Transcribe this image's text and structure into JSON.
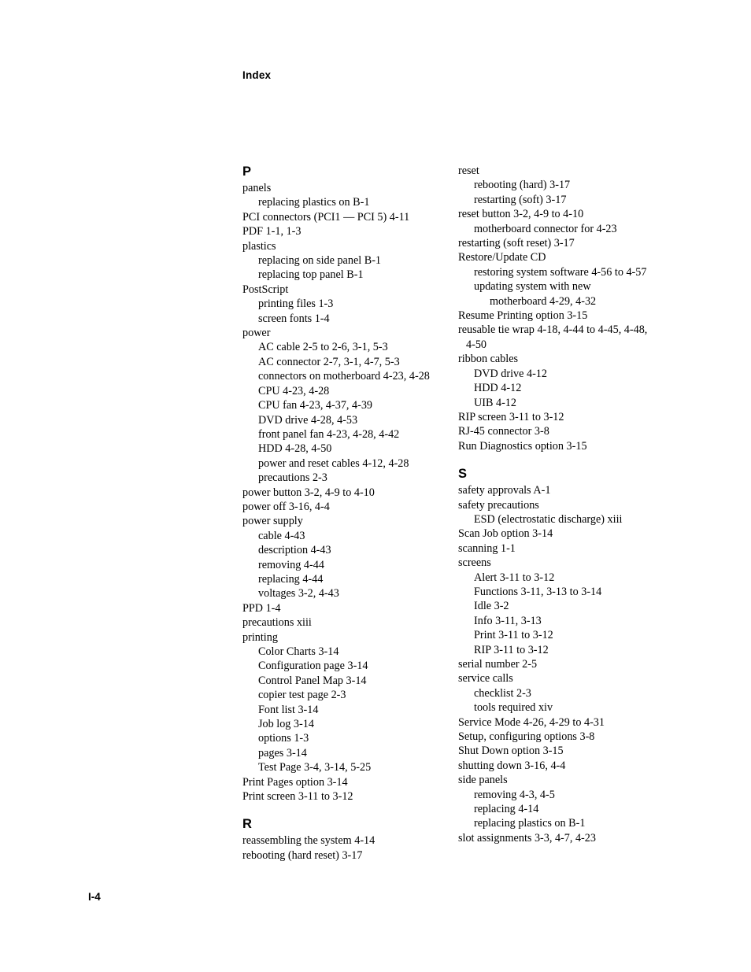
{
  "header": "Index",
  "pageNumber": "I-4",
  "typography": {
    "body_font": "Garamond",
    "body_pt": 14.2,
    "body_line_height": 18.4,
    "heading_font": "Helvetica",
    "heading_pt": 16.5,
    "running_head_pt": 13.5,
    "text_color": "#000000",
    "bg_color": "#ffffff"
  },
  "leftColumn": {
    "sections": [
      {
        "letter": "P",
        "entries": [
          {
            "text": "panels",
            "level": 0
          },
          {
            "text": "replacing plastics on  B-1",
            "level": 1
          },
          {
            "text": "PCI connectors (PCI1 — PCI 5)  4-11",
            "level": 0
          },
          {
            "text": "PDF  1-1, 1-3",
            "level": 0
          },
          {
            "text": "plastics",
            "level": 0
          },
          {
            "text": "replacing on side panel  B-1",
            "level": 1
          },
          {
            "text": "replacing top panel  B-1",
            "level": 1
          },
          {
            "text": "PostScript",
            "level": 0
          },
          {
            "text": "printing files  1-3",
            "level": 1
          },
          {
            "text": "screen fonts  1-4",
            "level": 1
          },
          {
            "text": "power",
            "level": 0
          },
          {
            "text": "AC cable  2-5 to 2-6, 3-1, 5-3",
            "level": 1
          },
          {
            "text": "AC connector  2-7, 3-1, 4-7, 5-3",
            "level": 1
          },
          {
            "text": "connectors on motherboard  4-23, 4-28",
            "level": 1
          },
          {
            "text": "CPU  4-23, 4-28",
            "level": 1
          },
          {
            "text": "CPU fan  4-23, 4-37, 4-39",
            "level": 1
          },
          {
            "text": "DVD drive  4-28, 4-53",
            "level": 1
          },
          {
            "text": "front panel fan  4-23, 4-28, 4-42",
            "level": 1
          },
          {
            "text": "HDD  4-28, 4-50",
            "level": 1
          },
          {
            "text": "power and reset cables  4-12, 4-28",
            "level": 1
          },
          {
            "text": "precautions  2-3",
            "level": 1
          },
          {
            "text": "power button  3-2, 4-9 to 4-10",
            "level": 0
          },
          {
            "text": "power off  3-16, 4-4",
            "level": 0
          },
          {
            "text": "power supply",
            "level": 0
          },
          {
            "text": "cable  4-43",
            "level": 1
          },
          {
            "text": "description  4-43",
            "level": 1
          },
          {
            "text": "removing  4-44",
            "level": 1
          },
          {
            "text": "replacing  4-44",
            "level": 1
          },
          {
            "text": "voltages  3-2, 4-43",
            "level": 1
          },
          {
            "text": "PPD  1-4",
            "level": 0
          },
          {
            "text": "precautions  xiii",
            "level": 0
          },
          {
            "text": "printing",
            "level": 0
          },
          {
            "text": "Color Charts  3-14",
            "level": 1
          },
          {
            "text": "Configuration page  3-14",
            "level": 1
          },
          {
            "text": "Control Panel Map  3-14",
            "level": 1
          },
          {
            "text": "copier test page  2-3",
            "level": 1
          },
          {
            "text": "Font list  3-14",
            "level": 1
          },
          {
            "text": "Job log  3-14",
            "level": 1
          },
          {
            "text": "options  1-3",
            "level": 1
          },
          {
            "text": "pages  3-14",
            "level": 1
          },
          {
            "text": "Test Page  3-4, 3-14, 5-25",
            "level": 1
          },
          {
            "text": "Print Pages option  3-14",
            "level": 0
          },
          {
            "text": "Print screen  3-11 to 3-12",
            "level": 0
          }
        ]
      },
      {
        "letter": "R",
        "entries": [
          {
            "text": "reassembling the system  4-14",
            "level": 0
          },
          {
            "text": "rebooting (hard reset)  3-17",
            "level": 0
          }
        ]
      }
    ]
  },
  "rightColumn": {
    "sections": [
      {
        "letter": null,
        "entries": [
          {
            "text": "reset",
            "level": 0
          },
          {
            "text": "rebooting (hard)  3-17",
            "level": 1
          },
          {
            "text": "restarting (soft)  3-17",
            "level": 1
          },
          {
            "text": "reset button  3-2, 4-9 to 4-10",
            "level": 0
          },
          {
            "text": "motherboard connector for  4-23",
            "level": 1
          },
          {
            "text": "restarting (soft reset)  3-17",
            "level": 0
          },
          {
            "text": "Restore/Update CD",
            "level": 0
          },
          {
            "text": "restoring system software  4-56 to 4-57",
            "level": 1
          },
          {
            "text": "updating system with new",
            "level": 1
          },
          {
            "text": "motherboard  4-29, 4-32",
            "level": 2
          },
          {
            "text": "Resume Printing option  3-15",
            "level": 0
          },
          {
            "text": "reusable tie wrap  4-18, 4-44 to 4-45, 4-48,",
            "level": 0
          },
          {
            "text": "4-50",
            "level": 0,
            "continuation": true
          },
          {
            "text": "ribbon cables",
            "level": 0
          },
          {
            "text": "DVD drive  4-12",
            "level": 1
          },
          {
            "text": "HDD  4-12",
            "level": 1
          },
          {
            "text": "UIB  4-12",
            "level": 1
          },
          {
            "text": "RIP screen  3-11 to 3-12",
            "level": 0
          },
          {
            "text": "RJ-45 connector  3-8",
            "level": 0
          },
          {
            "text": "Run Diagnostics option  3-15",
            "level": 0
          }
        ]
      },
      {
        "letter": "S",
        "entries": [
          {
            "text": "safety approvals  A-1",
            "level": 0
          },
          {
            "text": "safety precautions",
            "level": 0
          },
          {
            "text": "ESD (electrostatic discharge)  xiii",
            "level": 1
          },
          {
            "text": "Scan Job option  3-14",
            "level": 0
          },
          {
            "text": "scanning  1-1",
            "level": 0
          },
          {
            "text": "screens",
            "level": 0
          },
          {
            "text": "Alert  3-11 to 3-12",
            "level": 1
          },
          {
            "text": "Functions  3-11, 3-13 to 3-14",
            "level": 1
          },
          {
            "text": "Idle  3-2",
            "level": 1
          },
          {
            "text": "Info  3-11, 3-13",
            "level": 1
          },
          {
            "text": "Print  3-11 to 3-12",
            "level": 1
          },
          {
            "text": "RIP  3-11 to 3-12",
            "level": 1
          },
          {
            "text": "serial number  2-5",
            "level": 0
          },
          {
            "text": "service calls",
            "level": 0
          },
          {
            "text": "checklist  2-3",
            "level": 1
          },
          {
            "text": "tools required  xiv",
            "level": 1
          },
          {
            "text": "Service Mode  4-26, 4-29 to 4-31",
            "level": 0
          },
          {
            "text": "Setup, configuring options  3-8",
            "level": 0
          },
          {
            "text": "Shut Down option  3-15",
            "level": 0
          },
          {
            "text": "shutting down  3-16, 4-4",
            "level": 0
          },
          {
            "text": "side panels",
            "level": 0
          },
          {
            "text": "removing  4-3, 4-5",
            "level": 1
          },
          {
            "text": "replacing  4-14",
            "level": 1
          },
          {
            "text": "replacing plastics on  B-1",
            "level": 1
          },
          {
            "text": "slot assignments  3-3, 4-7, 4-23",
            "level": 0
          }
        ]
      }
    ]
  }
}
